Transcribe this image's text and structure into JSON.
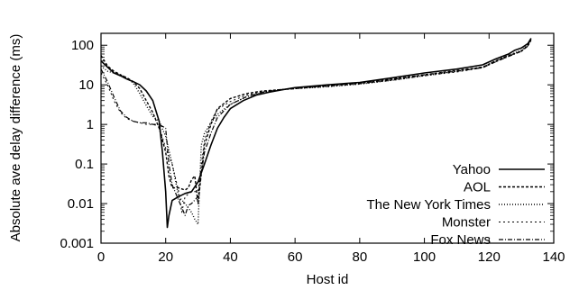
{
  "chart_data": {
    "type": "line",
    "xlabel": "Host id",
    "ylabel": "Absolute ave delay  difference (ms)",
    "xlim": [
      0,
      140
    ],
    "ylim": [
      0.001,
      200
    ],
    "yscale": "log",
    "xticks": [
      0,
      20,
      40,
      60,
      80,
      100,
      120,
      140
    ],
    "yticks": [
      {
        "value": 0.001,
        "label": "0.001"
      },
      {
        "value": 0.01,
        "label": "0.01"
      },
      {
        "value": 0.1,
        "label": "0.1"
      },
      {
        "value": 1,
        "label": "1"
      },
      {
        "value": 10,
        "label": "10"
      },
      {
        "value": 100,
        "label": "100"
      }
    ],
    "grid": false,
    "legend_position": "bottom-right",
    "series": [
      {
        "name": "Yahoo",
        "dash": "",
        "stroke_width": 1.6,
        "x": [
          0,
          2,
          4,
          6,
          8,
          10,
          12,
          14,
          16,
          18,
          19,
          20,
          20.5,
          21,
          22,
          24,
          26,
          28,
          30,
          31,
          32,
          34,
          36,
          38,
          40,
          44,
          48,
          52,
          56,
          60,
          70,
          80,
          90,
          100,
          110,
          118,
          122,
          126,
          128,
          130,
          132,
          133
        ],
        "y": [
          40,
          28,
          20,
          17,
          14,
          12,
          10,
          7,
          4,
          1.2,
          0.2,
          0.02,
          0.0025,
          0.005,
          0.012,
          0.015,
          0.018,
          0.02,
          0.035,
          0.06,
          0.1,
          0.3,
          0.8,
          1.5,
          2.5,
          4,
          5.5,
          6.5,
          7.5,
          8.5,
          10,
          11.5,
          15,
          20,
          25,
          32,
          45,
          60,
          75,
          85,
          110,
          150
        ]
      },
      {
        "name": "AOL",
        "dash": "3,2",
        "stroke_width": 1.4,
        "x": [
          0,
          2,
          4,
          6,
          8,
          10,
          12,
          14,
          16,
          18,
          20,
          21,
          22,
          24,
          26,
          27,
          28,
          29,
          30,
          32,
          34,
          36,
          40,
          45,
          50,
          55,
          60,
          70,
          80,
          90,
          100,
          110,
          118,
          122,
          126,
          130,
          132,
          133
        ],
        "y": [
          55,
          30,
          22,
          18,
          15,
          12,
          8,
          4,
          2,
          0.8,
          0.2,
          0.05,
          0.025,
          0.025,
          0.022,
          0.025,
          0.04,
          0.05,
          0.01,
          0.3,
          1.0,
          2.5,
          4.5,
          6,
          7,
          7.5,
          8,
          9.5,
          11,
          14,
          18,
          23,
          28,
          40,
          55,
          70,
          100,
          150
        ]
      },
      {
        "name": "The New York Times",
        "dash": "1,2",
        "stroke_width": 1.4,
        "x": [
          0,
          2,
          4,
          6,
          8,
          10,
          12,
          14,
          16,
          18,
          20,
          22,
          24,
          26,
          28,
          29,
          30,
          31,
          32,
          34,
          36,
          40,
          45,
          50,
          55,
          60,
          70,
          80,
          90,
          100,
          110,
          118,
          122,
          126,
          130,
          132,
          133
        ],
        "y": [
          30,
          22,
          20,
          18,
          15,
          11,
          6,
          3,
          1.6,
          1.2,
          0.5,
          0.1,
          0.015,
          0.01,
          0.006,
          0.004,
          0.003,
          0.3,
          0.6,
          1.1,
          1.8,
          3.2,
          5,
          6.5,
          7.5,
          8,
          9,
          10.5,
          13,
          17,
          22,
          28,
          40,
          55,
          75,
          100,
          140
        ]
      },
      {
        "name": "Monster",
        "dash": "2,3",
        "stroke_width": 1.0,
        "x": [
          0,
          2,
          4,
          6,
          8,
          10,
          12,
          14,
          16,
          18,
          20,
          22,
          24,
          25,
          26,
          28,
          30,
          32,
          34,
          36,
          40,
          45,
          50,
          55,
          60,
          70,
          80,
          90,
          100,
          110,
          118,
          122,
          126,
          130,
          132,
          133
        ],
        "y": [
          20,
          10,
          4,
          2,
          1.4,
          1.2,
          1.1,
          1.0,
          1.0,
          0.9,
          0.25,
          0.1,
          0.02,
          0.006,
          0.015,
          0.02,
          0.02,
          0.4,
          1.2,
          2.4,
          3.8,
          5.5,
          6.8,
          7.5,
          8,
          9,
          10.5,
          13,
          17,
          21,
          27,
          38,
          52,
          72,
          95,
          135
        ]
      },
      {
        "name": "Fox News",
        "dash": "5,2,1,2",
        "stroke_width": 1.2,
        "x": [
          0,
          2,
          4,
          6,
          8,
          10,
          12,
          14,
          16,
          18,
          20,
          21,
          22,
          24,
          25,
          26,
          27,
          28,
          30,
          32,
          34,
          36,
          40,
          45,
          50,
          55,
          60,
          70,
          80,
          90,
          100,
          110,
          118,
          122,
          126,
          130,
          132,
          133
        ],
        "y": [
          25,
          12,
          5,
          2.2,
          1.5,
          1.2,
          1.1,
          1.1,
          1.0,
          1.0,
          0.8,
          0.1,
          0.03,
          0.012,
          0.008,
          0.005,
          0.009,
          0.01,
          0.015,
          0.2,
          0.6,
          1.5,
          3.2,
          5,
          6.5,
          7.5,
          8.2,
          9.5,
          11,
          13.5,
          18,
          22,
          27,
          38,
          52,
          70,
          95,
          135
        ]
      }
    ]
  }
}
